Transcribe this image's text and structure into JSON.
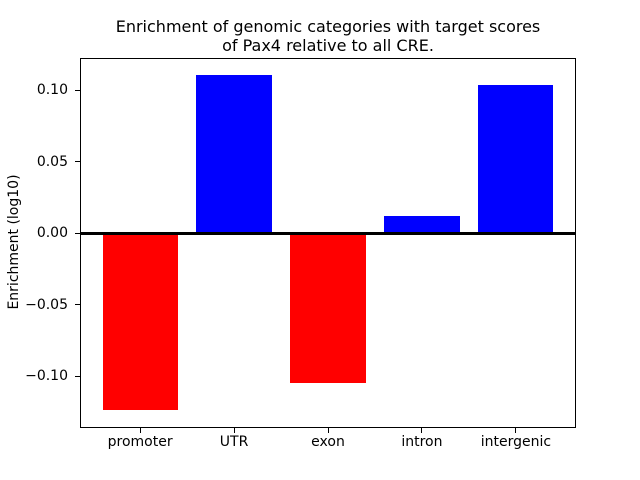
{
  "figure": {
    "background": "#ffffff",
    "text_color": "#000000"
  },
  "chart_data": {
    "type": "bar",
    "title": "Enrichment of genomic categories with target scores of Pax4 relative to all CRE.",
    "title_lines": [
      "Enrichment of genomic categories with target scores",
      "of Pax4 relative to all CRE."
    ],
    "xlabel": "",
    "ylabel": "Enrichment (log10)",
    "categories": [
      "promoter",
      "UTR",
      "exon",
      "intron",
      "intergenic"
    ],
    "values": [
      -0.124,
      0.111,
      -0.105,
      0.012,
      0.104
    ],
    "bar_colors": [
      "#ff0000",
      "#0000ff",
      "#ff0000",
      "#0000ff",
      "#0000ff"
    ],
    "positive_color": "#0000ff",
    "negative_color": "#ff0000",
    "bar_width": 0.8,
    "xlim": [
      -0.64,
      4.64
    ],
    "ylim": [
      -0.136,
      0.123
    ],
    "yticks": [
      -0.1,
      -0.05,
      0.0,
      0.05,
      0.1
    ],
    "ytick_labels": [
      "−0.10",
      "−0.05",
      "0.00",
      "0.05",
      "0.10"
    ],
    "grid": false,
    "zero_line": true,
    "legend": null,
    "spine_color": "#000000"
  }
}
